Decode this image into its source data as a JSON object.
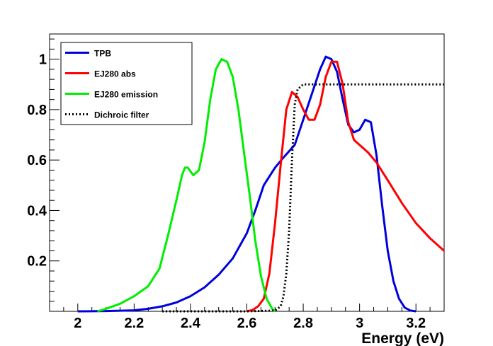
{
  "chart_data": {
    "type": "line",
    "title": "",
    "xlabel": "Energy (eV)",
    "ylabel": "",
    "xlim": [
      1.9,
      3.3
    ],
    "ylim": [
      0,
      1.1
    ],
    "x_ticks": [
      2,
      2.2,
      2.4,
      2.6,
      2.8,
      3,
      3.2
    ],
    "x_tick_labels": [
      "2",
      "2.2",
      "2.4",
      "2.6",
      "2.8",
      "3",
      "3.2"
    ],
    "y_ticks": [
      0.2,
      0.4,
      0.6,
      0.8,
      1
    ],
    "y_tick_labels": [
      "0.2",
      "0.4",
      "0.6",
      "0.8",
      "1"
    ],
    "grid": false,
    "legend_position": "top-left",
    "series": [
      {
        "name": "TPB",
        "color": "#0000dd",
        "style": "solid",
        "points": [
          [
            2.0,
            0.0
          ],
          [
            2.1,
            0.001
          ],
          [
            2.2,
            0.004
          ],
          [
            2.25,
            0.01
          ],
          [
            2.3,
            0.02
          ],
          [
            2.35,
            0.035
          ],
          [
            2.4,
            0.06
          ],
          [
            2.45,
            0.095
          ],
          [
            2.5,
            0.145
          ],
          [
            2.55,
            0.21
          ],
          [
            2.6,
            0.31
          ],
          [
            2.63,
            0.4
          ],
          [
            2.66,
            0.5
          ],
          [
            2.7,
            0.57
          ],
          [
            2.73,
            0.61
          ],
          [
            2.77,
            0.66
          ],
          [
            2.8,
            0.76
          ],
          [
            2.83,
            0.86
          ],
          [
            2.86,
            0.96
          ],
          [
            2.88,
            1.01
          ],
          [
            2.9,
            1.0
          ],
          [
            2.92,
            0.95
          ],
          [
            2.94,
            0.84
          ],
          [
            2.96,
            0.74
          ],
          [
            2.98,
            0.71
          ],
          [
            3.0,
            0.72
          ],
          [
            3.02,
            0.76
          ],
          [
            3.04,
            0.75
          ],
          [
            3.06,
            0.62
          ],
          [
            3.08,
            0.42
          ],
          [
            3.1,
            0.24
          ],
          [
            3.12,
            0.12
          ],
          [
            3.14,
            0.05
          ],
          [
            3.16,
            0.015
          ],
          [
            3.18,
            0.003
          ],
          [
            3.2,
            0.0
          ]
        ]
      },
      {
        "name": "EJ280 abs",
        "color": "#ff0000",
        "style": "solid",
        "points": [
          [
            2.6,
            0.0
          ],
          [
            2.62,
            0.005
          ],
          [
            2.64,
            0.02
          ],
          [
            2.66,
            0.05
          ],
          [
            2.68,
            0.15
          ],
          [
            2.7,
            0.35
          ],
          [
            2.72,
            0.58
          ],
          [
            2.74,
            0.8
          ],
          [
            2.76,
            0.87
          ],
          [
            2.78,
            0.85
          ],
          [
            2.8,
            0.8
          ],
          [
            2.82,
            0.76
          ],
          [
            2.84,
            0.76
          ],
          [
            2.86,
            0.82
          ],
          [
            2.88,
            0.93
          ],
          [
            2.9,
            0.99
          ],
          [
            2.92,
            0.99
          ],
          [
            2.94,
            0.9
          ],
          [
            2.96,
            0.75
          ],
          [
            2.98,
            0.68
          ],
          [
            3.0,
            0.66
          ],
          [
            3.03,
            0.63
          ],
          [
            3.06,
            0.59
          ],
          [
            3.1,
            0.52
          ],
          [
            3.15,
            0.43
          ],
          [
            3.2,
            0.35
          ],
          [
            3.25,
            0.29
          ],
          [
            3.3,
            0.24
          ]
        ]
      },
      {
        "name": "EJ280 emission",
        "color": "#00ee00",
        "style": "solid",
        "points": [
          [
            2.07,
            0.0
          ],
          [
            2.1,
            0.01
          ],
          [
            2.15,
            0.03
          ],
          [
            2.2,
            0.06
          ],
          [
            2.25,
            0.1
          ],
          [
            2.29,
            0.17
          ],
          [
            2.32,
            0.3
          ],
          [
            2.35,
            0.44
          ],
          [
            2.37,
            0.54
          ],
          [
            2.38,
            0.57
          ],
          [
            2.39,
            0.57
          ],
          [
            2.41,
            0.54
          ],
          [
            2.43,
            0.56
          ],
          [
            2.45,
            0.67
          ],
          [
            2.47,
            0.84
          ],
          [
            2.49,
            0.96
          ],
          [
            2.51,
            1.0
          ],
          [
            2.53,
            0.99
          ],
          [
            2.55,
            0.93
          ],
          [
            2.57,
            0.8
          ],
          [
            2.59,
            0.63
          ],
          [
            2.61,
            0.46
          ],
          [
            2.63,
            0.28
          ],
          [
            2.65,
            0.14
          ],
          [
            2.67,
            0.05
          ],
          [
            2.69,
            0.01
          ],
          [
            2.7,
            0.0
          ]
        ]
      },
      {
        "name": "Dichroic filter",
        "color": "#000000",
        "style": "dotted",
        "points": [
          [
            2.3,
            0.0
          ],
          [
            2.6,
            0.0
          ],
          [
            2.7,
            0.003
          ],
          [
            2.72,
            0.02
          ],
          [
            2.73,
            0.06
          ],
          [
            2.74,
            0.15
          ],
          [
            2.75,
            0.32
          ],
          [
            2.76,
            0.6
          ],
          [
            2.77,
            0.82
          ],
          [
            2.78,
            0.88
          ],
          [
            2.8,
            0.9
          ],
          [
            3.3,
            0.9
          ]
        ]
      }
    ]
  }
}
